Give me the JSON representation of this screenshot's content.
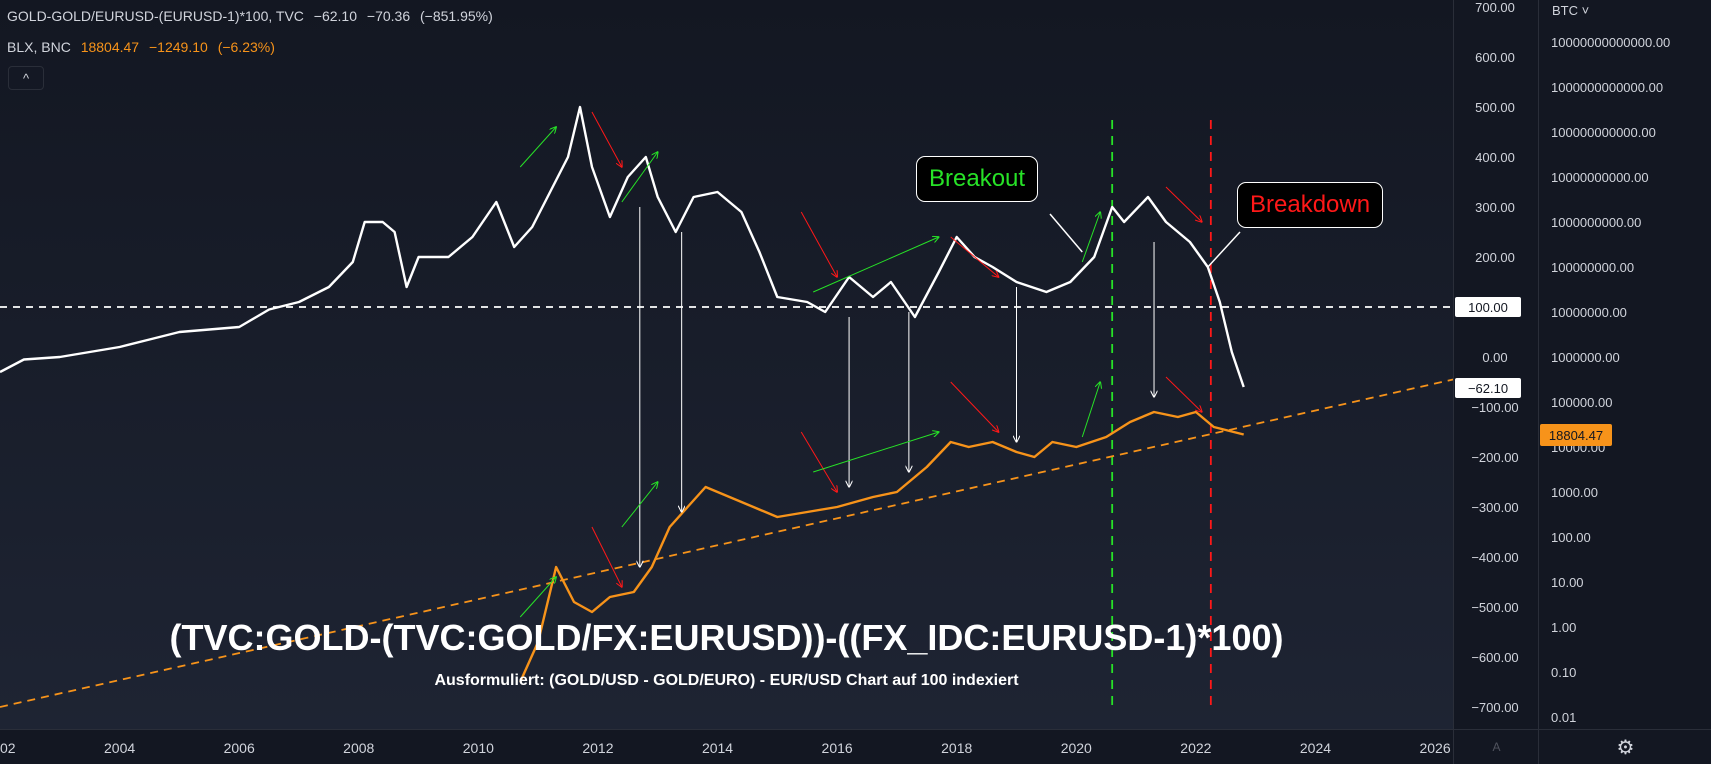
{
  "header": {
    "series1_title": "GOLD-GOLD/EURUSD-(EURUSD-1)*100, TVC",
    "series1_last": "−62.10",
    "series1_change": "−70.36",
    "series1_change_pct": "(−851.95%)",
    "series2_title": "BLX, BNC",
    "series2_last": "18804.47",
    "series2_change": "−1249.10",
    "series2_change_pct": "(−6.23%)",
    "collapse_icon": "chevron-up-icon",
    "collapse_glyph": "^"
  },
  "scale_selector": "BTC ˅",
  "settings_icon": "gear-icon",
  "settings_glyph": "⚙",
  "auto_label": "A",
  "colors": {
    "background": "#131722",
    "white_series": "#ffffff",
    "orange_series": "#f7931a",
    "green": "#27e227",
    "red": "#ff1818",
    "price_tag_orange": "#f7931a"
  },
  "annotations": {
    "breakout": "Breakout",
    "breakdown": "Breakdown",
    "formula": "(TVC:GOLD-(TVC:GOLD/FX:EURUSD))-((FX_IDC:EURUSD-1)*100)",
    "subtitle": "Ausformuliert: (GOLD/USD - GOLD/EURO) - EUR/USD Chart auf 100 indexiert"
  },
  "chart_data": {
    "type": "line",
    "title": "",
    "x_ticks": [
      "02",
      "2004",
      "2006",
      "2008",
      "2010",
      "2012",
      "2014",
      "2016",
      "2018",
      "2020",
      "2022",
      "2024",
      "2026"
    ],
    "left_axis": {
      "ticks": [
        "700.00",
        "600.00",
        "500.00",
        "400.00",
        "300.00",
        "200.00",
        "100.00",
        "0.00",
        "−100.00",
        "−200.00",
        "−300.00",
        "−400.00",
        "−500.00",
        "−600.00",
        "−700.00"
      ],
      "ylim": [
        -700,
        700
      ],
      "price_tags": [
        "100.00",
        "−62.10"
      ]
    },
    "right_axis": {
      "scale": "log",
      "ticks": [
        "10000000000000.00",
        "1000000000000.00",
        "100000000000.00",
        "10000000000.00",
        "1000000000.00",
        "100000000.00",
        "10000000.00",
        "1000000.00",
        "100000.00",
        "10000.00",
        "1000.00",
        "100.00",
        "10.00",
        "1.00",
        "0.10",
        "0.01"
      ],
      "price_tag": "18804.47"
    },
    "horizontal_line": {
      "y": 100,
      "style": "dashed",
      "color": "#ffffff"
    },
    "vertical_lines": [
      {
        "x": 2020.6,
        "color": "#27e227",
        "style": "dashed"
      },
      {
        "x": 2022.25,
        "color": "#ff1818",
        "style": "dashed"
      }
    ],
    "trendline": {
      "from": [
        2002.0,
        -700
      ],
      "to": [
        2026.3,
        -45
      ],
      "color": "#f7931a",
      "style": "dashed"
    },
    "series": [
      {
        "color": "#ffffff",
        "points": [
          [
            2002.0,
            -30
          ],
          [
            2002.4,
            -5
          ],
          [
            2003.0,
            0
          ],
          [
            2003.5,
            10
          ],
          [
            2004.0,
            20
          ],
          [
            2004.5,
            35
          ],
          [
            2005.0,
            50
          ],
          [
            2005.5,
            55
          ],
          [
            2006.0,
            60
          ],
          [
            2006.5,
            95
          ],
          [
            2007.0,
            110
          ],
          [
            2007.5,
            140
          ],
          [
            2007.9,
            190
          ],
          [
            2008.1,
            270
          ],
          [
            2008.4,
            270
          ],
          [
            2008.6,
            250
          ],
          [
            2008.8,
            140
          ],
          [
            2009.0,
            200
          ],
          [
            2009.5,
            200
          ],
          [
            2009.9,
            240
          ],
          [
            2010.3,
            310
          ],
          [
            2010.6,
            220
          ],
          [
            2010.9,
            260
          ],
          [
            2011.2,
            330
          ],
          [
            2011.5,
            400
          ],
          [
            2011.7,
            500
          ],
          [
            2011.9,
            380
          ],
          [
            2012.2,
            280
          ],
          [
            2012.5,
            360
          ],
          [
            2012.8,
            400
          ],
          [
            2013.0,
            320
          ],
          [
            2013.3,
            250
          ],
          [
            2013.6,
            320
          ],
          [
            2014.0,
            330
          ],
          [
            2014.4,
            290
          ],
          [
            2014.7,
            210
          ],
          [
            2015.0,
            120
          ],
          [
            2015.5,
            110
          ],
          [
            2015.8,
            90
          ],
          [
            2016.2,
            160
          ],
          [
            2016.6,
            120
          ],
          [
            2016.9,
            150
          ],
          [
            2017.3,
            80
          ],
          [
            2017.7,
            170
          ],
          [
            2018.0,
            240
          ],
          [
            2018.3,
            200
          ],
          [
            2018.6,
            180
          ],
          [
            2019.0,
            150
          ],
          [
            2019.5,
            130
          ],
          [
            2019.9,
            150
          ],
          [
            2020.3,
            200
          ],
          [
            2020.6,
            300
          ],
          [
            2020.8,
            270
          ],
          [
            2021.2,
            320
          ],
          [
            2021.5,
            270
          ],
          [
            2021.9,
            230
          ],
          [
            2022.2,
            180
          ],
          [
            2022.4,
            110
          ],
          [
            2022.6,
            10
          ],
          [
            2022.8,
            -60
          ]
        ]
      },
      {
        "color": "#f7931a",
        "points": [
          [
            2010.7,
            -650
          ],
          [
            2011.0,
            -570
          ],
          [
            2011.3,
            -420
          ],
          [
            2011.6,
            -490
          ],
          [
            2011.9,
            -510
          ],
          [
            2012.2,
            -480
          ],
          [
            2012.6,
            -470
          ],
          [
            2012.9,
            -420
          ],
          [
            2013.2,
            -340
          ],
          [
            2013.5,
            -300
          ],
          [
            2013.8,
            -260
          ],
          [
            2014.2,
            -280
          ],
          [
            2014.6,
            -300
          ],
          [
            2015.0,
            -320
          ],
          [
            2015.5,
            -310
          ],
          [
            2016.0,
            -300
          ],
          [
            2016.6,
            -280
          ],
          [
            2017.0,
            -270
          ],
          [
            2017.5,
            -220
          ],
          [
            2017.9,
            -170
          ],
          [
            2018.2,
            -180
          ],
          [
            2018.6,
            -170
          ],
          [
            2019.0,
            -190
          ],
          [
            2019.3,
            -200
          ],
          [
            2019.6,
            -170
          ],
          [
            2020.0,
            -180
          ],
          [
            2020.5,
            -160
          ],
          [
            2020.9,
            -130
          ],
          [
            2021.3,
            -110
          ],
          [
            2021.7,
            -120
          ],
          [
            2022.0,
            -110
          ],
          [
            2022.3,
            -140
          ],
          [
            2022.8,
            -155
          ]
        ]
      }
    ],
    "drop_arrows": [
      {
        "x": 2012.7,
        "from": 300,
        "to": -420
      },
      {
        "x": 2013.4,
        "from": 250,
        "to": -310
      },
      {
        "x": 2016.2,
        "from": 80,
        "to": -260
      },
      {
        "x": 2017.2,
        "from": 90,
        "to": -230
      },
      {
        "x": 2019.0,
        "from": 140,
        "to": -170
      },
      {
        "x": 2021.3,
        "from": 230,
        "to": -80
      }
    ],
    "trend_arrows": [
      {
        "color": "#27e227",
        "from": [
          2010.7,
          380
        ],
        "to": [
          2011.3,
          460
        ]
      },
      {
        "color": "#ff1818",
        "from": [
          2011.9,
          490
        ],
        "to": [
          2012.4,
          380
        ]
      },
      {
        "color": "#27e227",
        "from": [
          2012.4,
          310
        ],
        "to": [
          2013.0,
          410
        ]
      },
      {
        "color": "#ff1818",
        "from": [
          2015.4,
          290
        ],
        "to": [
          2016.0,
          160
        ]
      },
      {
        "color": "#27e227",
        "from": [
          2015.6,
          130
        ],
        "to": [
          2017.7,
          240
        ]
      },
      {
        "color": "#ff1818",
        "from": [
          2017.9,
          240
        ],
        "to": [
          2018.7,
          160
        ]
      },
      {
        "color": "#27e227",
        "from": [
          2020.1,
          190
        ],
        "to": [
          2020.4,
          290
        ]
      },
      {
        "color": "#ff1818",
        "from": [
          2021.5,
          340
        ],
        "to": [
          2022.1,
          270
        ]
      },
      {
        "color": "#27e227",
        "from": [
          2010.7,
          -520
        ],
        "to": [
          2011.3,
          -440
        ]
      },
      {
        "color": "#ff1818",
        "from": [
          2011.9,
          -340
        ],
        "to": [
          2012.4,
          -460
        ]
      },
      {
        "color": "#27e227",
        "from": [
          2012.4,
          -340
        ],
        "to": [
          2013.0,
          -250
        ]
      },
      {
        "color": "#ff1818",
        "from": [
          2015.4,
          -150
        ],
        "to": [
          2016.0,
          -270
        ]
      },
      {
        "color": "#27e227",
        "from": [
          2015.6,
          -230
        ],
        "to": [
          2017.7,
          -150
        ]
      },
      {
        "color": "#ff1818",
        "from": [
          2017.9,
          -50
        ],
        "to": [
          2018.7,
          -150
        ]
      },
      {
        "color": "#27e227",
        "from": [
          2020.1,
          -160
        ],
        "to": [
          2020.4,
          -50
        ]
      },
      {
        "color": "#ff1818",
        "from": [
          2021.5,
          -40
        ],
        "to": [
          2022.1,
          -110
        ]
      }
    ],
    "callout_pointers": [
      {
        "label": "Breakout",
        "to": [
          2020.1,
          210
        ]
      },
      {
        "label": "Breakdown",
        "to": [
          2022.2,
          180
        ]
      }
    ]
  }
}
